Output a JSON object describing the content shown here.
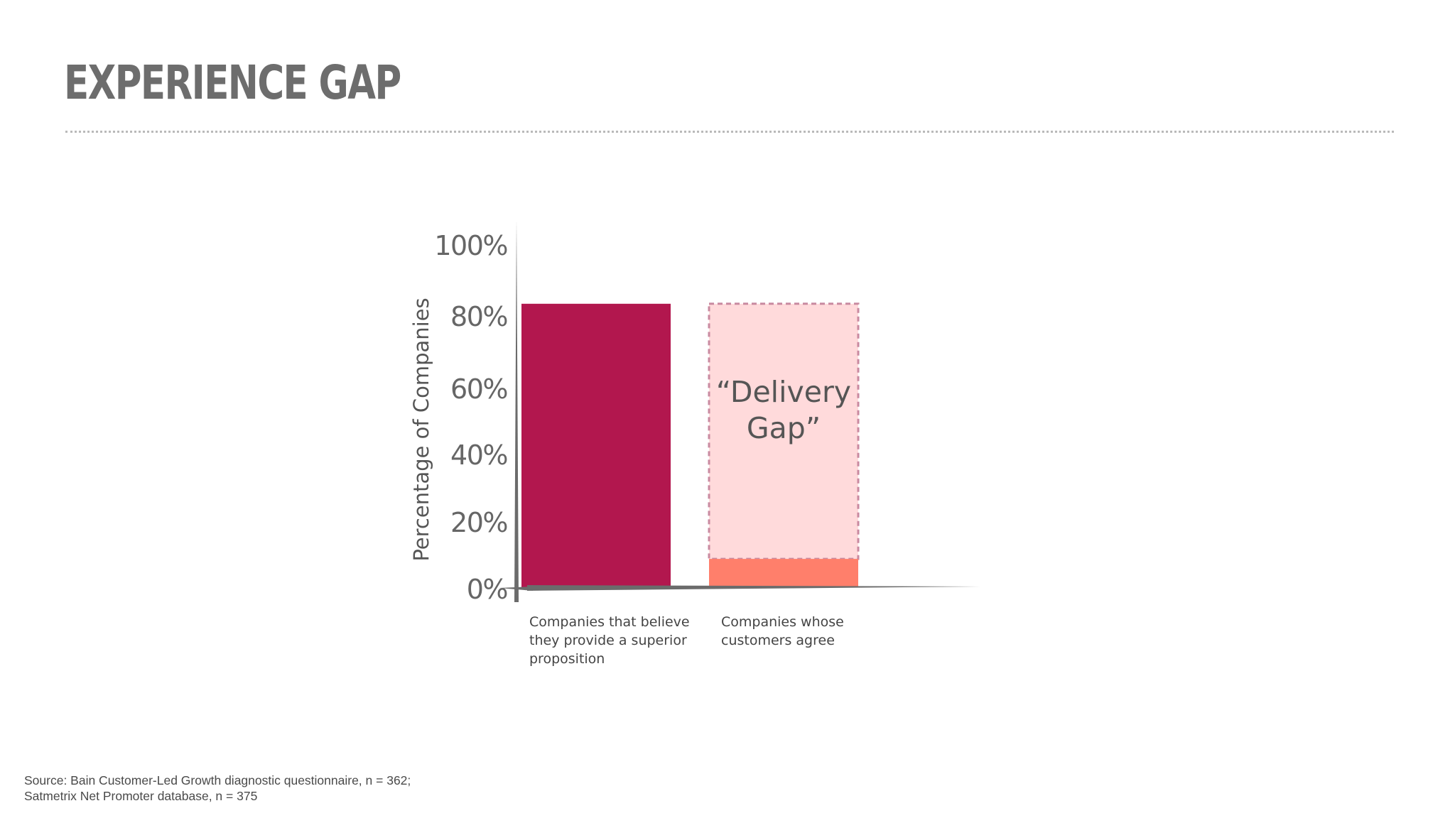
{
  "title": "EXPERIENCE GAP",
  "source": {
    "line1": "Source: Bain Customer-Led Growth diagnostic questionnaire, n = 362;",
    "line2": "Satmetrix Net Promoter database, n = 375"
  },
  "chart_data": {
    "type": "bar",
    "ylabel": "Percentage of  Companies",
    "ylim": [
      0,
      100
    ],
    "yticks": [
      "100%",
      "80%",
      "60%",
      "40%",
      "20%",
      "0%"
    ],
    "categories": [
      [
        "Companies that believe",
        "they provide  a superior",
        "proposition"
      ],
      [
        "Companies whose",
        "customers agree"
      ]
    ],
    "values": [
      80,
      8
    ],
    "gap": {
      "label": [
        "“Delivery",
        "Gap”"
      ],
      "from": 8,
      "to": 80
    },
    "colors": {
      "bar1": "#b2174e",
      "bar2": "#ff7f6b",
      "gap_fill": "#ffdadb",
      "gap_border": "#c98aa0",
      "axis": "#6b6b6b",
      "text": "#555555"
    }
  }
}
